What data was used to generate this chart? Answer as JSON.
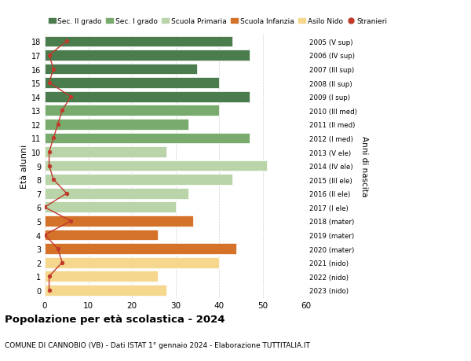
{
  "ages": [
    18,
    17,
    16,
    15,
    14,
    13,
    12,
    11,
    10,
    9,
    8,
    7,
    6,
    5,
    4,
    3,
    2,
    1,
    0
  ],
  "anni_nascita": [
    "2005 (V sup)",
    "2006 (IV sup)",
    "2007 (III sup)",
    "2008 (II sup)",
    "2009 (I sup)",
    "2010 (III med)",
    "2011 (II med)",
    "2012 (I med)",
    "2013 (V ele)",
    "2014 (IV ele)",
    "2015 (III ele)",
    "2016 (II ele)",
    "2017 (I ele)",
    "2018 (mater)",
    "2019 (mater)",
    "2020 (mater)",
    "2021 (nido)",
    "2022 (nido)",
    "2023 (nido)"
  ],
  "bar_values": [
    43,
    47,
    35,
    40,
    47,
    40,
    33,
    47,
    28,
    51,
    43,
    33,
    30,
    34,
    26,
    44,
    40,
    26,
    28
  ],
  "stranieri": [
    5,
    1,
    2,
    1,
    6,
    4,
    3,
    2,
    1,
    1,
    2,
    5,
    0,
    6,
    0,
    3,
    4,
    1,
    1
  ],
  "bar_colors": [
    "#4a7c4e",
    "#4a7c4e",
    "#4a7c4e",
    "#4a7c4e",
    "#4a7c4e",
    "#7aab6e",
    "#7aab6e",
    "#7aab6e",
    "#b8d4a8",
    "#b8d4a8",
    "#b8d4a8",
    "#b8d4a8",
    "#b8d4a8",
    "#d4722a",
    "#d4722a",
    "#d4722a",
    "#f5d78e",
    "#f5d78e",
    "#f5d78e"
  ],
  "legend_labels": [
    "Sec. II grado",
    "Sec. I grado",
    "Scuola Primaria",
    "Scuola Infanzia",
    "Asilo Nido",
    "Stranieri"
  ],
  "legend_colors": [
    "#4a7c4e",
    "#7aab6e",
    "#b8d4a8",
    "#d4722a",
    "#f5d78e",
    "#c0392b"
  ],
  "title_bold": "Popolazione per età scolastica - 2024",
  "subtitle": "COMUNE DI CANNOBIO (VB) - Dati ISTAT 1° gennaio 2024 - Elaborazione TUTTITALIA.IT",
  "ylabel": "Età alunni",
  "ylabel2": "Anni di nascita",
  "xlim": [
    0,
    60
  ],
  "background_color": "#ffffff",
  "grid_color": "#cccccc",
  "stranieri_color": "#c0392b"
}
